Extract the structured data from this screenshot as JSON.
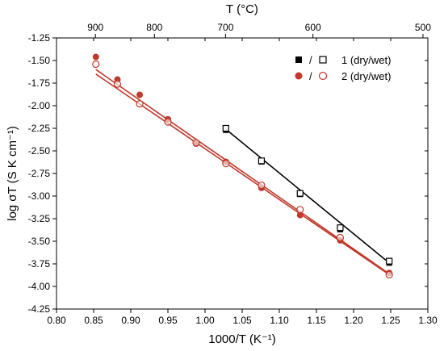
{
  "chart_data": {
    "type": "scatter",
    "xlabel": "1000/T (K⁻¹)",
    "ylabel": "log σT (S K cm⁻¹)",
    "top_xlabel": "T (°C)",
    "xlim": [
      0.8,
      1.3
    ],
    "ylim": [
      -4.25,
      -1.25
    ],
    "x_ticks": [
      "0.80",
      "0.85",
      "0.90",
      "0.95",
      "1.00",
      "1.05",
      "1.10",
      "1.15",
      "1.20",
      "1.25",
      "1.30"
    ],
    "x_tick_values": [
      0.8,
      0.85,
      0.9,
      0.95,
      1.0,
      1.05,
      1.1,
      1.15,
      1.2,
      1.25,
      1.3
    ],
    "y_ticks": [
      "-4.25",
      "-4.00",
      "-3.75",
      "-3.50",
      "-3.25",
      "-3.00",
      "-2.75",
      "-2.50",
      "-2.25",
      "-2.00",
      "-1.75",
      "-1.50",
      "-1.25"
    ],
    "y_tick_values": [
      -4.25,
      -4.0,
      -3.75,
      -3.5,
      -3.25,
      -3.0,
      -2.75,
      -2.5,
      -2.25,
      -2.0,
      -1.75,
      -1.5,
      -1.25
    ],
    "top_ticks": [
      {
        "label": "900",
        "celsius": 900
      },
      {
        "label": "800",
        "celsius": 800
      },
      {
        "label": "700",
        "celsius": 700
      },
      {
        "label": "600",
        "celsius": 600
      },
      {
        "label": "500",
        "celsius": 500
      }
    ],
    "legend": {
      "placement": "top-right",
      "entries": [
        {
          "slash": "/",
          "label": "1 (dry/wet)",
          "color": "#000000"
        },
        {
          "slash": "/",
          "label": "2 (dry/wet)",
          "color": "#c0392b"
        }
      ]
    },
    "series": [
      {
        "name": "1 dry",
        "marker": "filled-square",
        "color": "#000000",
        "x": [
          1.028,
          1.076,
          1.128,
          1.182,
          1.248
        ],
        "y": [
          -2.27,
          -2.62,
          -2.98,
          -3.37,
          -3.74
        ]
      },
      {
        "name": "1 wet",
        "marker": "open-square",
        "color": "#000000",
        "x": [
          1.028,
          1.076,
          1.128,
          1.182,
          1.248
        ],
        "y": [
          -2.25,
          -2.61,
          -2.97,
          -3.35,
          -3.72
        ]
      },
      {
        "name": "2 dry",
        "marker": "filled-circle",
        "color": "#c0392b",
        "x": [
          0.853,
          0.882,
          0.912,
          0.95,
          0.988,
          1.028,
          1.076,
          1.128,
          1.182,
          1.248
        ],
        "y": [
          -1.46,
          -1.71,
          -1.88,
          -2.15,
          -2.42,
          -2.62,
          -2.91,
          -3.21,
          -3.49,
          -3.85
        ]
      },
      {
        "name": "2 wet",
        "marker": "open-circle",
        "color": "#c0392b",
        "x": [
          0.853,
          0.882,
          0.912,
          0.95,
          0.988,
          1.028,
          1.076,
          1.128,
          1.182,
          1.248
        ],
        "y": [
          -1.54,
          -1.76,
          -1.98,
          -2.18,
          -2.41,
          -2.64,
          -2.88,
          -3.15,
          -3.46,
          -3.87
        ]
      }
    ],
    "fit_lines": [
      {
        "name": "1 fit",
        "color": "#000000",
        "x": [
          1.028,
          1.248
        ],
        "y": [
          -2.26,
          -3.74
        ]
      },
      {
        "name": "2 dry fit",
        "color": "#c0392b",
        "x": [
          0.853,
          1.248
        ],
        "y": [
          -1.6,
          -3.86
        ]
      },
      {
        "name": "2 wet fit",
        "color": "#c0392b",
        "x": [
          0.853,
          1.248
        ],
        "y": [
          -1.65,
          -3.87
        ]
      }
    ],
    "grid": false
  }
}
